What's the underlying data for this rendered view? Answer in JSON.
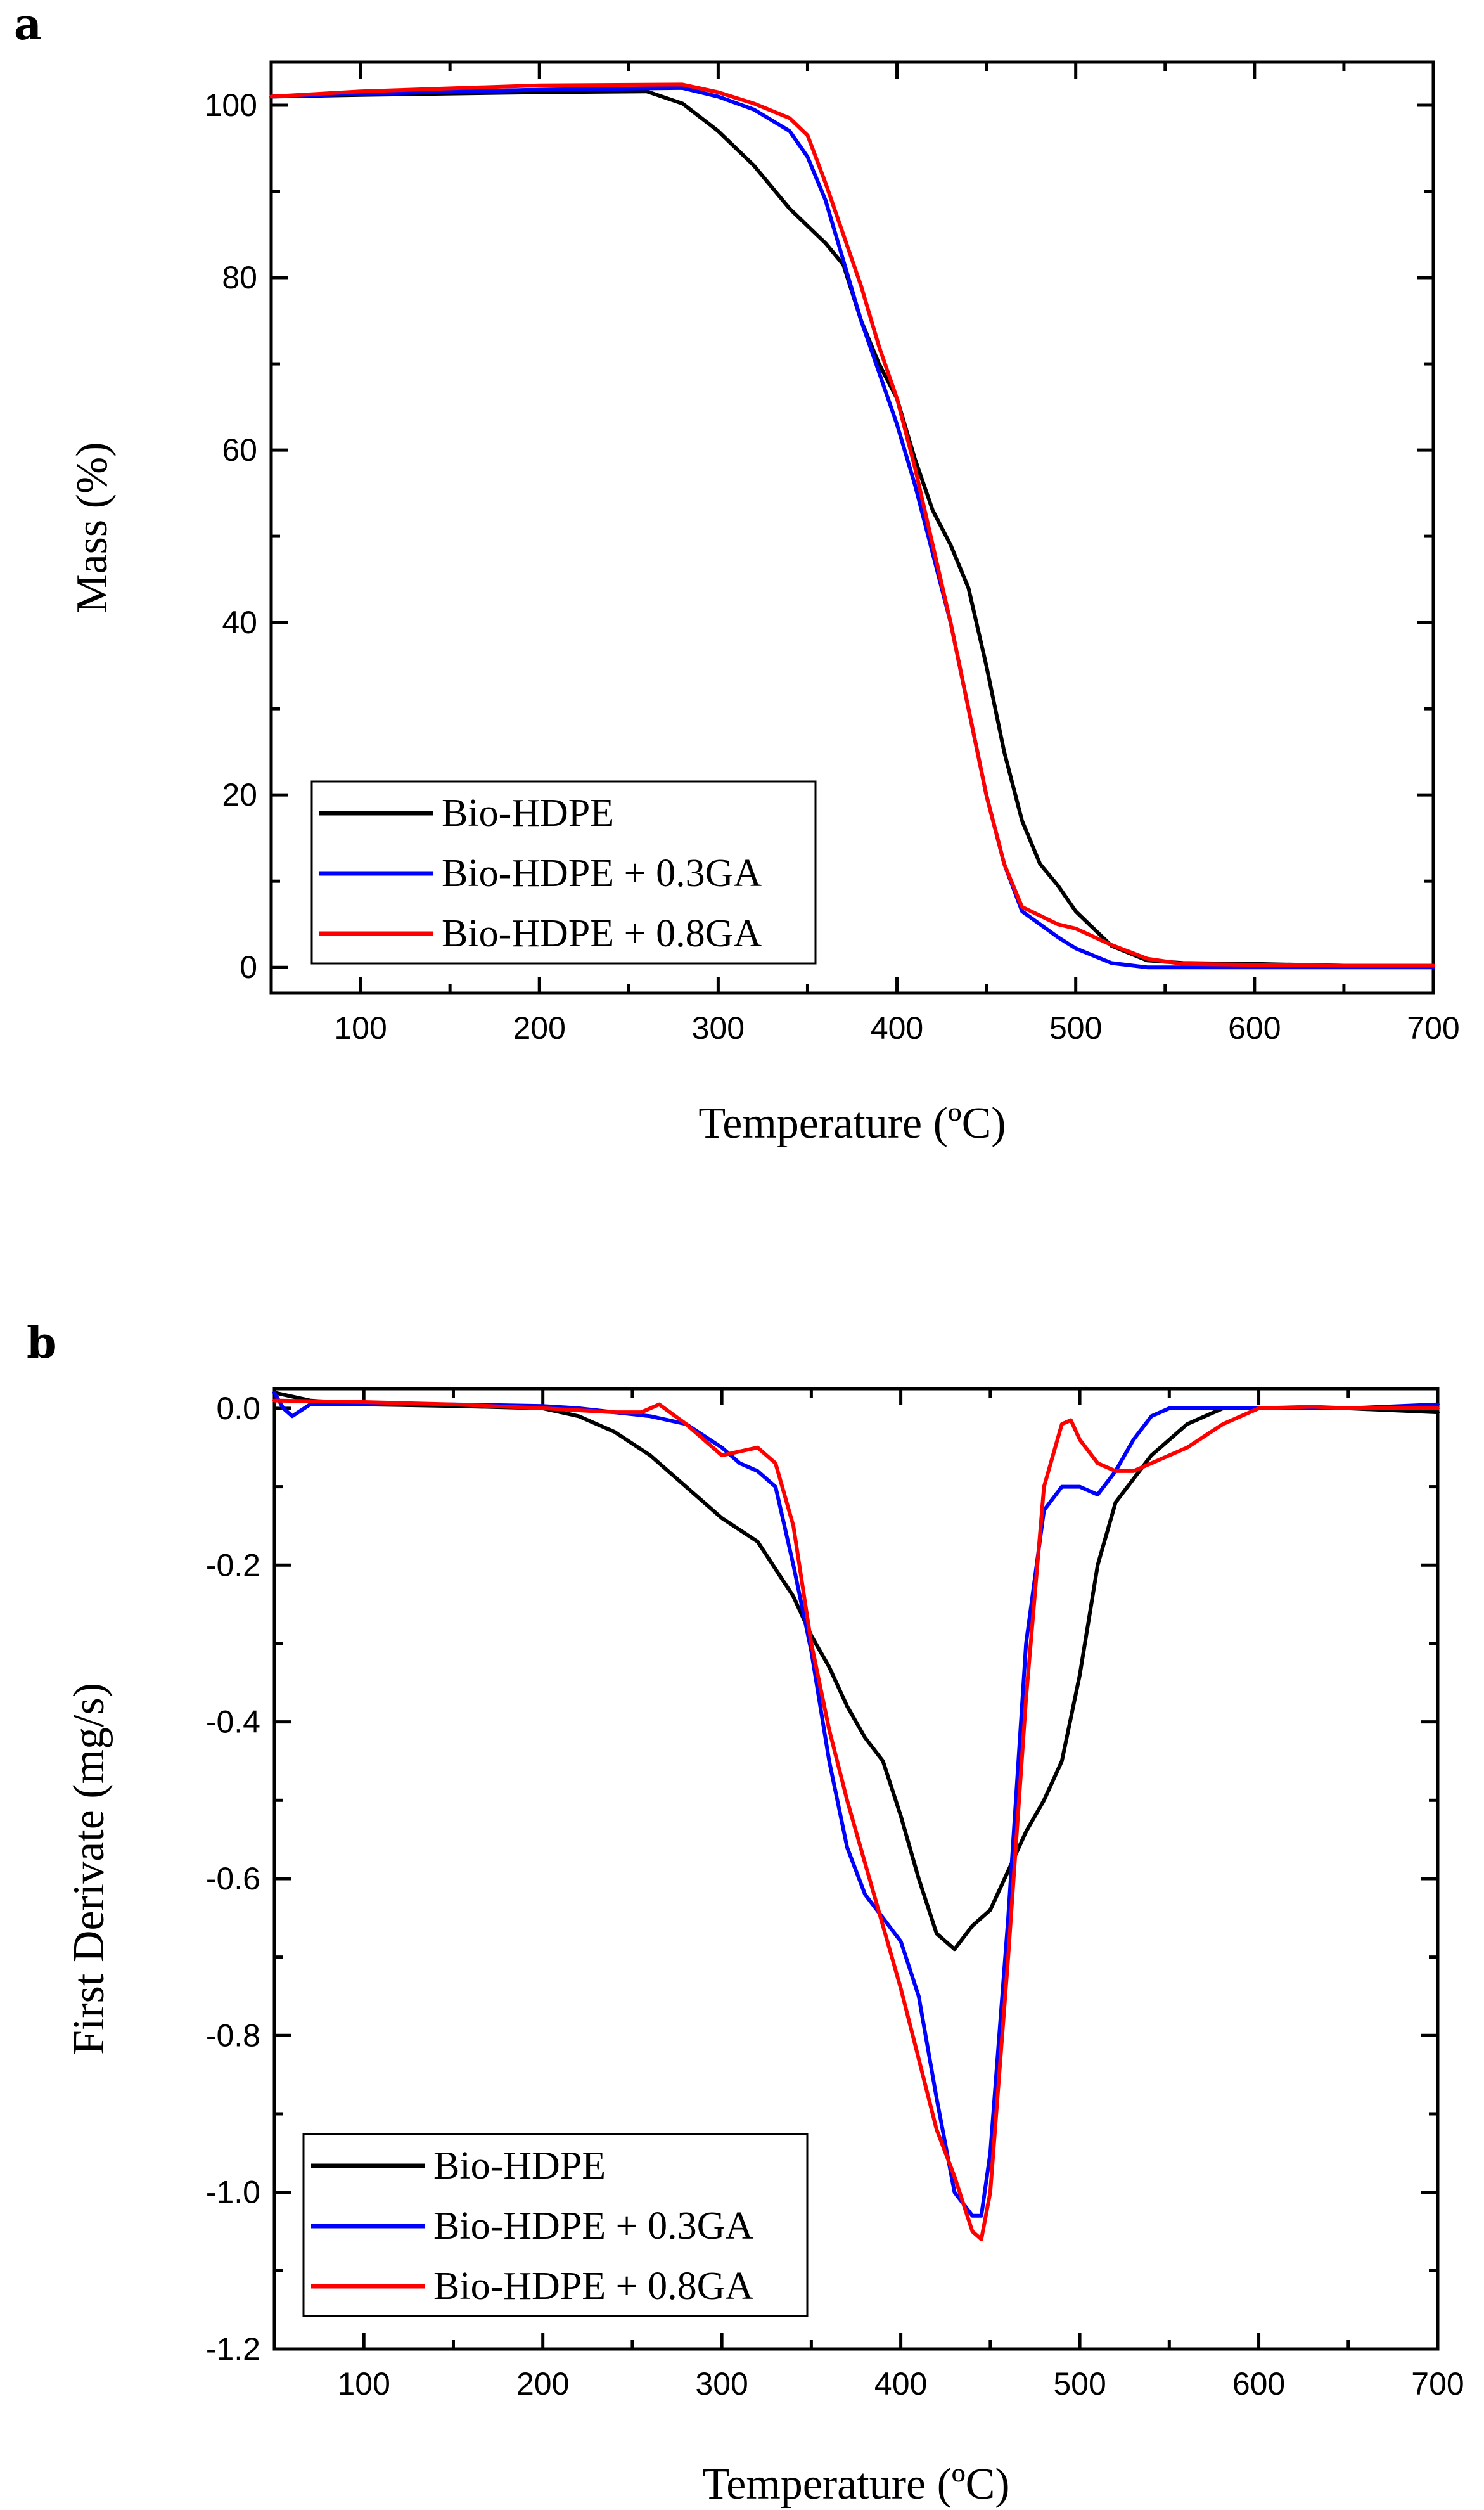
{
  "figure": {
    "panel_a_label": "a",
    "panel_b_label": "b"
  },
  "chart_data": [
    {
      "type": "line",
      "panel": "a",
      "xlabel": "Temperature (ºC)",
      "ylabel": "Mass (%)",
      "xlim": [
        50,
        700
      ],
      "ylim": [
        -3,
        105
      ],
      "xticks": [
        100,
        200,
        300,
        400,
        500,
        600,
        700
      ],
      "yticks": [
        0,
        20,
        40,
        60,
        80,
        100
      ],
      "xtick_labels": [
        "100",
        "200",
        "300",
        "400",
        "500",
        "600",
        "700"
      ],
      "ytick_labels": [
        "0",
        "20",
        "40",
        "60",
        "80",
        "100"
      ],
      "legend_position": "bottom-left",
      "series": [
        {
          "name": "Bio-HDPE",
          "color": "#000000",
          "x": [
            50,
            100,
            200,
            260,
            280,
            300,
            320,
            340,
            360,
            370,
            380,
            390,
            400,
            410,
            420,
            430,
            440,
            450,
            460,
            470,
            480,
            490,
            500,
            520,
            540,
            560,
            600,
            650,
            700
          ],
          "y": [
            101,
            101.2,
            101.5,
            101.6,
            100.2,
            97,
            93,
            88,
            84,
            81.5,
            75,
            70,
            66,
            59,
            53,
            49,
            44,
            35,
            25,
            17,
            12,
            9.5,
            6.5,
            2.5,
            0.8,
            0.5,
            0.4,
            0.2,
            0.2
          ]
        },
        {
          "name": "Bio-HDPE + 0.3GA",
          "color": "#0000ff",
          "x": [
            50,
            100,
            200,
            280,
            300,
            320,
            340,
            350,
            360,
            370,
            380,
            390,
            400,
            410,
            420,
            430,
            440,
            450,
            460,
            470,
            480,
            490,
            500,
            520,
            540,
            560,
            600,
            650,
            700
          ],
          "y": [
            101,
            101.3,
            101.8,
            102,
            101,
            99.5,
            97,
            94,
            89,
            82,
            75,
            69,
            63,
            56,
            48,
            40,
            30,
            20,
            12,
            6.5,
            5,
            3.5,
            2.2,
            0.5,
            0,
            0,
            0,
            0,
            0
          ]
        },
        {
          "name": "Bio-HDPE + 0.8GA",
          "color": "#ff0000",
          "x": [
            50,
            100,
            200,
            280,
            300,
            320,
            340,
            350,
            360,
            370,
            380,
            390,
            400,
            410,
            420,
            430,
            440,
            450,
            460,
            470,
            480,
            490,
            500,
            520,
            540,
            560,
            600,
            650,
            700
          ],
          "y": [
            101,
            101.6,
            102.3,
            102.4,
            101.5,
            100.2,
            98.5,
            96.5,
            91,
            85,
            79,
            72,
            66,
            58,
            49,
            40,
            30,
            20,
            12,
            7,
            6,
            5,
            4.5,
            2.6,
            1,
            0.4,
            0.3,
            0.2,
            0.2
          ]
        }
      ]
    },
    {
      "type": "line",
      "panel": "b",
      "xlabel": "Temperature (ºC)",
      "ylabel": "First Derivate (mg/s)",
      "xlim": [
        50,
        700
      ],
      "ylim": [
        -1.2,
        0.025
      ],
      "xticks": [
        100,
        200,
        300,
        400,
        500,
        600,
        700
      ],
      "yticks": [
        0.0,
        -0.2,
        -0.4,
        -0.6,
        -0.8,
        -1.0,
        -1.2
      ],
      "xtick_labels": [
        "100",
        "200",
        "300",
        "400",
        "500",
        "600",
        "700"
      ],
      "ytick_labels": [
        "0.0",
        "-0.2",
        "-0.4",
        "-0.6",
        "-0.8",
        "-1.0",
        "-1.2"
      ],
      "legend_position": "bottom-left",
      "series": [
        {
          "name": "Bio-HDPE",
          "color": "#000000",
          "x": [
            50,
            70,
            100,
            150,
            200,
            220,
            240,
            260,
            280,
            300,
            320,
            340,
            350,
            360,
            370,
            380,
            390,
            400,
            410,
            420,
            430,
            440,
            450,
            460,
            470,
            480,
            490,
            500,
            510,
            520,
            540,
            560,
            580,
            600,
            650,
            700
          ],
          "y": [
            0.02,
            0.01,
            0.005,
            0.003,
            0.0,
            -0.01,
            -0.03,
            -0.06,
            -0.1,
            -0.14,
            -0.17,
            -0.24,
            -0.29,
            -0.33,
            -0.38,
            -0.42,
            -0.45,
            -0.52,
            -0.6,
            -0.67,
            -0.69,
            -0.66,
            -0.64,
            -0.59,
            -0.54,
            -0.5,
            -0.45,
            -0.34,
            -0.2,
            -0.12,
            -0.06,
            -0.02,
            0.0,
            0.0,
            0.0,
            -0.005
          ]
        },
        {
          "name": "Bio-HDPE + 0.3GA",
          "color": "#0000ff",
          "x": [
            50,
            55,
            60,
            70,
            100,
            150,
            200,
            220,
            240,
            260,
            280,
            300,
            310,
            320,
            330,
            340,
            350,
            360,
            370,
            380,
            390,
            400,
            410,
            420,
            430,
            440,
            445,
            450,
            460,
            470,
            480,
            490,
            500,
            510,
            520,
            530,
            540,
            550,
            560,
            600,
            650,
            700
          ],
          "y": [
            0.02,
            0.0,
            -0.01,
            0.005,
            0.005,
            0.005,
            0.003,
            0.0,
            -0.005,
            -0.01,
            -0.02,
            -0.05,
            -0.07,
            -0.08,
            -0.1,
            -0.2,
            -0.31,
            -0.45,
            -0.56,
            -0.62,
            -0.65,
            -0.68,
            -0.75,
            -0.88,
            -1.0,
            -1.03,
            -1.03,
            -0.95,
            -0.65,
            -0.3,
            -0.13,
            -0.1,
            -0.1,
            -0.11,
            -0.08,
            -0.04,
            -0.01,
            0.0,
            0.0,
            0.0,
            0.0,
            0.005
          ]
        },
        {
          "name": "Bio-HDPE + 0.8GA",
          "color": "#ff0000",
          "x": [
            50,
            100,
            150,
            200,
            240,
            255,
            265,
            280,
            300,
            310,
            320,
            330,
            340,
            350,
            360,
            370,
            380,
            390,
            400,
            410,
            420,
            430,
            440,
            445,
            450,
            460,
            470,
            480,
            490,
            495,
            500,
            510,
            520,
            530,
            540,
            560,
            580,
            600,
            630,
            650,
            700
          ],
          "y": [
            0.01,
            0.008,
            0.005,
            0.0,
            -0.005,
            -0.005,
            0.005,
            -0.02,
            -0.06,
            -0.055,
            -0.05,
            -0.07,
            -0.15,
            -0.3,
            -0.41,
            -0.5,
            -0.58,
            -0.66,
            -0.74,
            -0.83,
            -0.92,
            -0.98,
            -1.05,
            -1.06,
            -1.0,
            -0.7,
            -0.37,
            -0.1,
            -0.02,
            -0.015,
            -0.04,
            -0.07,
            -0.08,
            -0.08,
            -0.07,
            -0.05,
            -0.02,
            0.0,
            0.002,
            0.0,
            0.0
          ]
        }
      ]
    }
  ]
}
